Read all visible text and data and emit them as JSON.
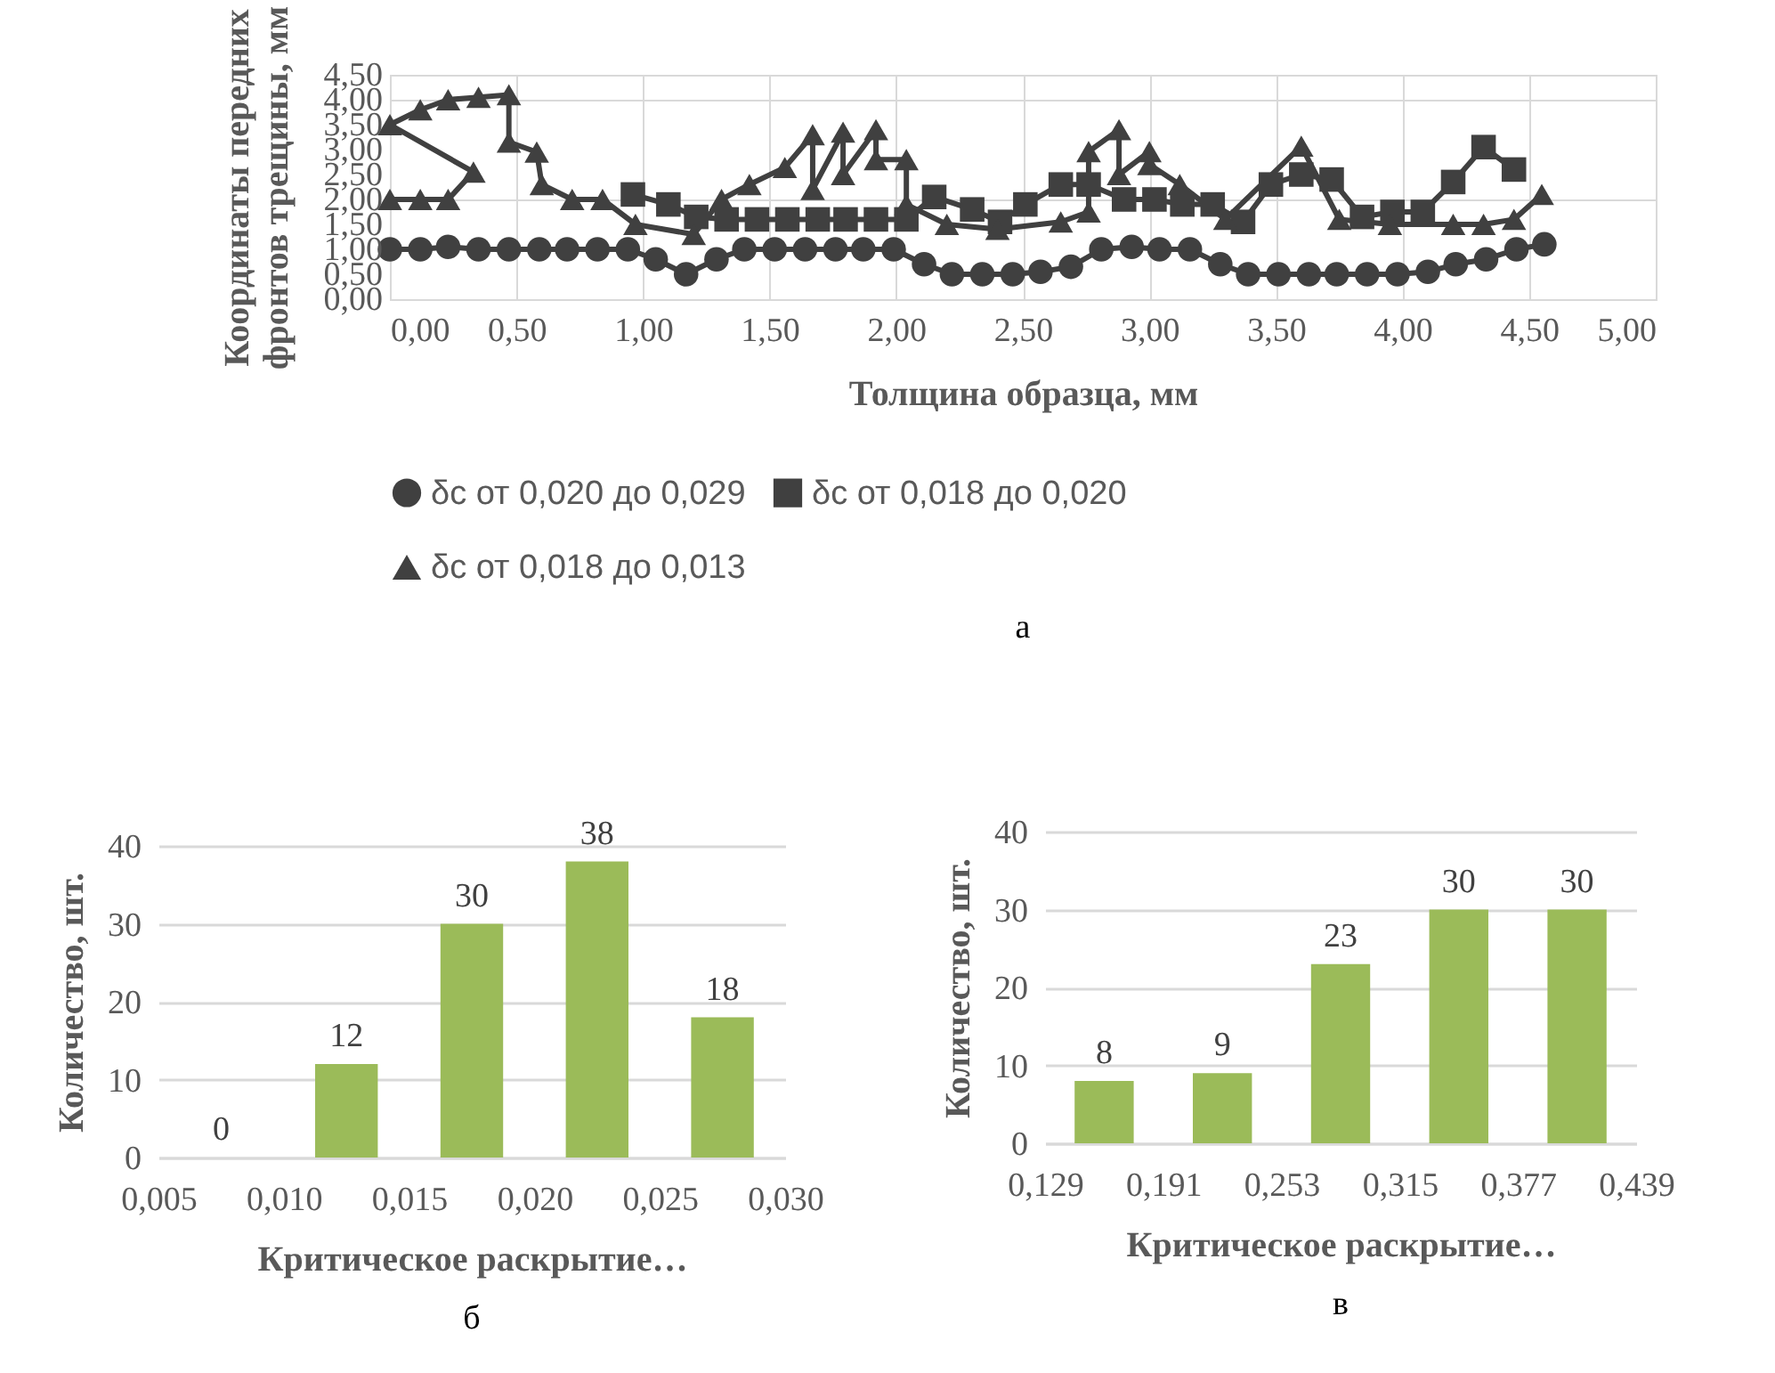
{
  "chart_data": [
    {
      "type": "line",
      "xlabel": "Толщина образца, мм",
      "ylabel": "Координаты передних фронтов  трещины, мм",
      "annotations": [
        "а"
      ],
      "xlim": [
        0,
        5
      ],
      "xticks": [
        {
          "value": 0,
          "label": "0,00"
        },
        {
          "value": 0.5,
          "label": "0,50"
        },
        {
          "value": 1,
          "label": "1,00"
        },
        {
          "value": 1.5,
          "label": "1,50"
        },
        {
          "value": 2,
          "label": "2,00"
        },
        {
          "value": 2.5,
          "label": "2,50"
        },
        {
          "value": 3,
          "label": "3,00"
        },
        {
          "value": 3.5,
          "label": "3,50"
        },
        {
          "value": 4,
          "label": "4,00"
        },
        {
          "value": 4.5,
          "label": "4,50"
        },
        {
          "value": 5,
          "label": "5,00"
        }
      ],
      "ylim": [
        0,
        4.5
      ],
      "yticks": [
        {
          "value": 0,
          "label": "0,00"
        },
        {
          "value": 0.5,
          "label": "0,50"
        },
        {
          "value": 1,
          "label": "1,00"
        },
        {
          "value": 1.5,
          "label": "1,50"
        },
        {
          "value": 2,
          "label": "2,00"
        },
        {
          "value": 2.5,
          "label": "2,50"
        },
        {
          "value": 3,
          "label": "3,00"
        },
        {
          "value": 3.5,
          "label": "3,50"
        },
        {
          "value": 4,
          "label": "4,00"
        },
        {
          "value": 4.5,
          "label": "4,50"
        }
      ],
      "grid": true,
      "legend": "bottom",
      "series": [
        {
          "name": "δc от 0,020 до 0,029",
          "color": "#404040",
          "marker": "circle",
          "x": [
            0,
            0.12,
            0.23,
            0.35,
            0.47,
            0.59,
            0.7,
            0.82,
            0.94,
            1.05,
            1.17,
            1.29,
            1.4,
            1.52,
            1.64,
            1.76,
            1.87,
            1.99,
            2.11,
            2.22,
            2.34,
            2.46,
            2.57,
            2.69,
            2.81,
            2.93,
            3.04,
            3.16,
            3.28,
            3.39,
            3.51,
            3.63,
            3.74,
            3.86,
            3.98,
            4.1,
            4.21,
            4.33,
            4.45,
            4.56
          ],
          "values": [
            1.0,
            1.0,
            1.05,
            1.0,
            1.0,
            1.0,
            1.0,
            1.0,
            1.0,
            0.8,
            0.5,
            0.8,
            1.0,
            1.0,
            1.0,
            1.0,
            1.0,
            1.0,
            0.7,
            0.5,
            0.5,
            0.5,
            0.55,
            0.65,
            1.0,
            1.05,
            1.0,
            1.0,
            0.7,
            0.5,
            0.5,
            0.5,
            0.5,
            0.5,
            0.5,
            0.55,
            0.7,
            0.8,
            1.0,
            1.1
          ]
        },
        {
          "name": "δc от 0,018 до 0,020",
          "color": "#404040",
          "marker": "square",
          "x": [
            0.96,
            1.1,
            1.21,
            1.33,
            1.45,
            1.57,
            1.69,
            1.8,
            1.92,
            2.04,
            2.15,
            2.3,
            2.41,
            2.51,
            2.65,
            2.76,
            2.9,
            3.02,
            3.13,
            3.25,
            3.37,
            3.48,
            3.6,
            3.72,
            3.84,
            3.96,
            4.08,
            4.2,
            4.32,
            4.44
          ],
          "values": [
            2.1,
            1.9,
            1.65,
            1.6,
            1.6,
            1.6,
            1.6,
            1.6,
            1.6,
            1.6,
            2.05,
            1.8,
            1.55,
            1.9,
            2.3,
            2.3,
            2.0,
            2.0,
            1.9,
            1.9,
            1.55,
            2.3,
            2.5,
            2.4,
            1.65,
            1.75,
            1.75,
            2.35,
            3.05,
            2.6
          ]
        },
        {
          "name": "δc от 0,018 до 0,013",
          "color": "#404040",
          "marker": "triangle",
          "x": [
            0,
            0.12,
            0.23,
            0.33,
            0,
            0.12,
            0.23,
            0.35,
            0.47,
            0.47,
            0.58,
            0.6,
            0.72,
            0.84,
            0.97,
            1.2,
            1.31,
            1.42,
            1.56,
            1.67,
            1.67,
            1.79,
            1.79,
            1.92,
            1.92,
            2.04,
            2.04,
            2.2,
            2.4,
            2.65,
            2.76,
            2.76,
            2.88,
            2.88,
            3.0,
            3.0,
            3.12,
            3.3,
            3.6,
            3.75,
            3.95,
            4.2,
            4.32,
            4.44,
            4.55
          ],
          "values": [
            2.0,
            2.0,
            2.0,
            2.55,
            3.5,
            3.8,
            4.0,
            4.05,
            4.1,
            3.15,
            2.95,
            2.3,
            2.0,
            2.0,
            1.5,
            1.3,
            2.0,
            2.3,
            2.64,
            3.3,
            2.2,
            3.35,
            2.5,
            3.4,
            2.8,
            2.8,
            1.9,
            1.5,
            1.4,
            1.55,
            1.75,
            2.96,
            3.4,
            2.5,
            2.96,
            2.7,
            2.3,
            1.6,
            3.07,
            1.6,
            1.5,
            1.5,
            1.5,
            1.6,
            2.1
          ]
        }
      ]
    },
    {
      "type": "histogram",
      "xlabel": "Критическое раскрытие…",
      "ylabel": "Количество, шт.",
      "annotations": [
        "б"
      ],
      "bins": [
        0.005,
        0.01,
        0.015,
        0.02,
        0.025,
        0.03
      ],
      "values": [
        0,
        12,
        30,
        38,
        18
      ],
      "color": "#9bbb59",
      "xlim": [
        0.005,
        0.03
      ],
      "xticks": [
        {
          "value": 0.005,
          "label": "0,005"
        },
        {
          "value": 0.01,
          "label": "0,010"
        },
        {
          "value": 0.015,
          "label": "0,015"
        },
        {
          "value": 0.02,
          "label": "0,020"
        },
        {
          "value": 0.025,
          "label": "0,025"
        },
        {
          "value": 0.03,
          "label": "0,030"
        }
      ],
      "ylim": [
        0,
        40
      ],
      "yticks": [
        0,
        10,
        20,
        30,
        40
      ],
      "grid": "y",
      "data_labels": true
    },
    {
      "type": "histogram",
      "xlabel": "Критическое раскрытие…",
      "ylabel": "Количество, шт.",
      "annotations": [
        "в"
      ],
      "bins": [
        0.129,
        0.191,
        0.253,
        0.315,
        0.377,
        0.439
      ],
      "values": [
        8,
        9,
        23,
        30,
        30
      ],
      "color": "#9bbb59",
      "xlim": [
        0.129,
        0.439
      ],
      "xticks": [
        {
          "value": 0.129,
          "label": "0,129"
        },
        {
          "value": 0.191,
          "label": "0,191"
        },
        {
          "value": 0.253,
          "label": "0,253"
        },
        {
          "value": 0.315,
          "label": "0,315"
        },
        {
          "value": 0.377,
          "label": "0,377"
        },
        {
          "value": 0.439,
          "label": "0,439"
        }
      ],
      "ylim": [
        0,
        40
      ],
      "yticks": [
        0,
        10,
        20,
        30,
        40
      ],
      "grid": "y",
      "data_labels": true
    }
  ]
}
